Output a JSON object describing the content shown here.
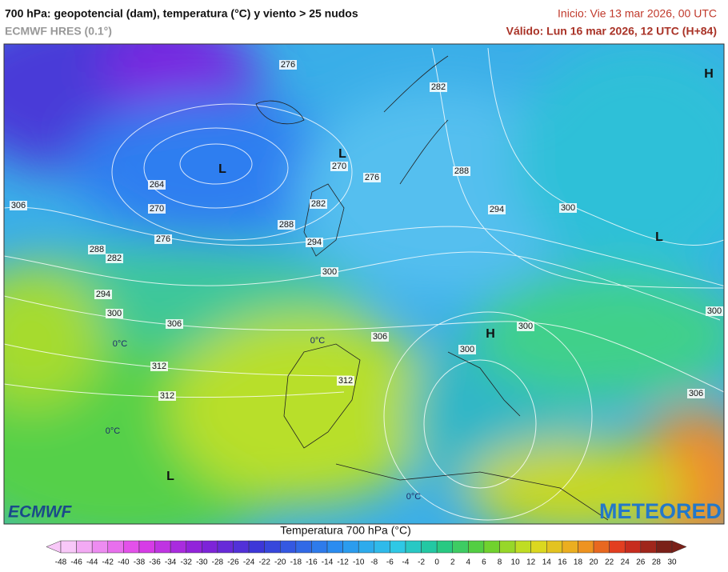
{
  "header": {
    "title": "700 hPa: geopotencial (dam), temperatura (°C) y viento > 25 nudos",
    "subtitle": "ECMWF HRES (0.1°)",
    "init": "Inicio: Vie 13 mar 2026, 00 UTC",
    "valid": "Válido: Lun 16 mar 2026, 12 UTC (H+84)"
  },
  "map": {
    "labels": [
      "276",
      "282",
      "L",
      "L",
      "270",
      "276",
      "264",
      "270",
      "306",
      "282",
      "288",
      "294",
      "300",
      "288",
      "276",
      "294",
      "288",
      "282",
      "L",
      "H",
      "300",
      "294",
      "300",
      "306",
      "H",
      "300",
      "306",
      "300",
      "300",
      "312",
      "312",
      "312",
      "306",
      "0°C",
      "0°C",
      "0°C",
      "0°C",
      "L"
    ],
    "logo_left": "ECMWF",
    "logo_right": "METEORED"
  },
  "colorbar": {
    "title": "Temperatura 700 hPa (°C)",
    "ticks": [
      -48,
      -46,
      -44,
      -42,
      -40,
      -38,
      -36,
      -34,
      -32,
      -30,
      -28,
      -26,
      -24,
      -22,
      -20,
      -18,
      -16,
      -14,
      -12,
      -10,
      -8,
      -6,
      -4,
      -2,
      0,
      2,
      4,
      6,
      8,
      10,
      12,
      14,
      16,
      18,
      20,
      22,
      24,
      26,
      28,
      30
    ]
  }
}
